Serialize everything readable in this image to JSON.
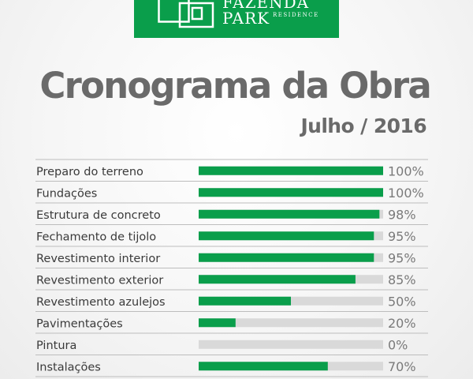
{
  "logo": {
    "line1": "FAZENDA",
    "line2": "PARK",
    "line3": "RESIDENCE",
    "brand_color": "#0a9e4b"
  },
  "header": {
    "title": "Cronograma da Obra",
    "subtitle": "Julho / 2016"
  },
  "chart_data": {
    "type": "bar",
    "orientation": "horizontal",
    "title": "Cronograma da Obra",
    "subtitle": "Julho / 2016",
    "categories": [
      "Preparo do terreno",
      "Fundações",
      "Estrutura de concreto",
      "Fechamento de tijolo",
      "Revestimento interior",
      "Revestimento exterior",
      "Revestimento azulejos",
      "Pavimentações",
      "Pintura",
      "Instalações"
    ],
    "values": [
      100,
      100,
      98,
      95,
      95,
      85,
      50,
      20,
      0,
      70
    ],
    "value_labels": [
      "100%",
      "100%",
      "98%",
      "95%",
      "95%",
      "85%",
      "50%",
      "20%",
      "0%",
      "70%"
    ],
    "xlim": [
      0,
      100
    ],
    "unit": "%",
    "bar_color": "#0a9e4b",
    "track_color": "#d9d9d9",
    "text_color": "#3a3a3a",
    "label_color": "#7a7a7a",
    "separator_color": "#bdbdbd",
    "grid": false,
    "legend": "none"
  }
}
